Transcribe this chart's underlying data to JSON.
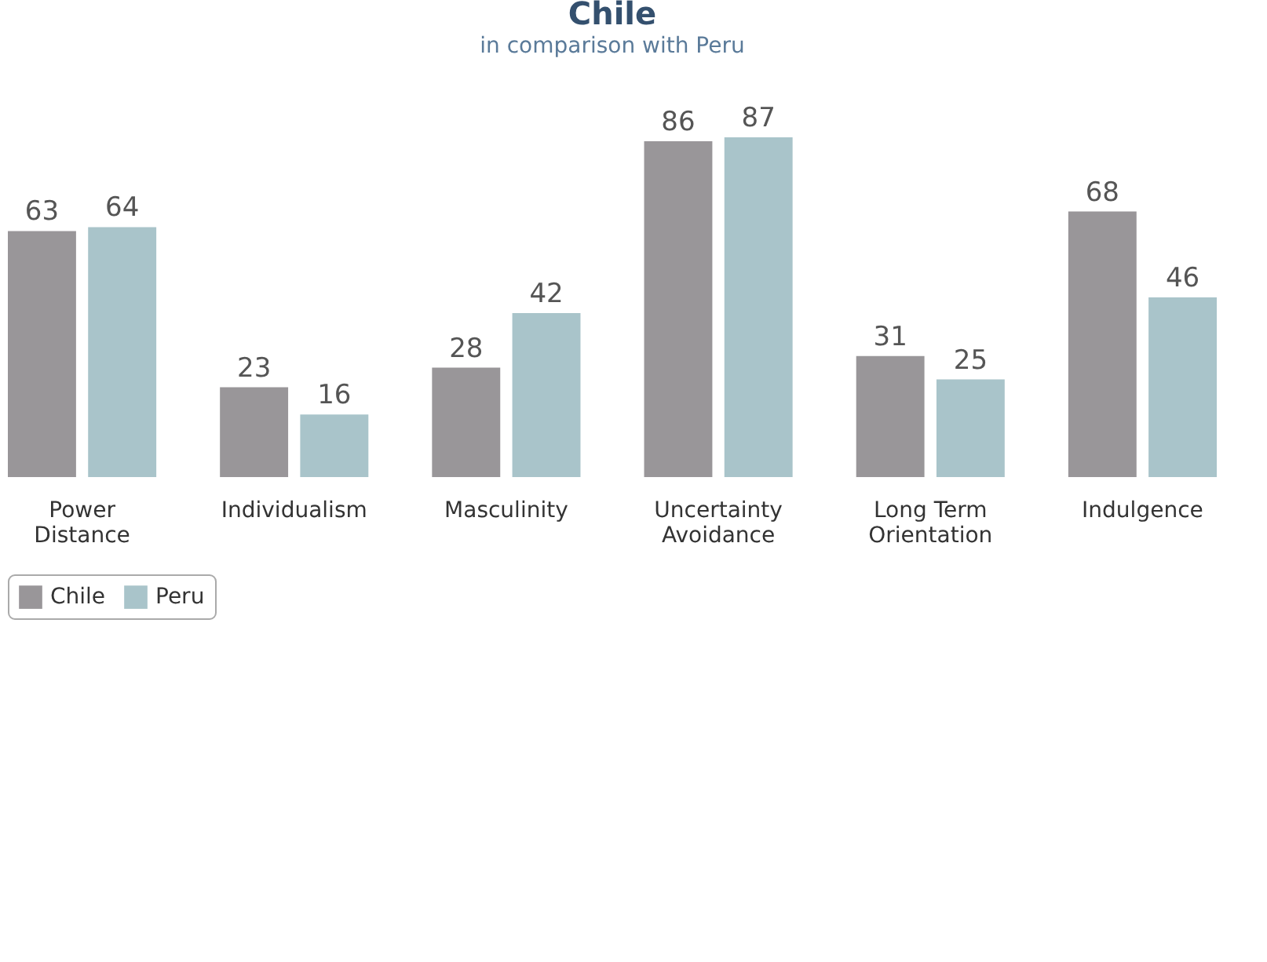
{
  "chart_data": {
    "type": "bar",
    "title": "Chile",
    "subtitle": "in comparison with Peru",
    "categories": [
      "Power Distance",
      "Individualism",
      "Masculinity",
      "Uncertainty Avoidance",
      "Long Term Orientation",
      "Indulgence"
    ],
    "series": [
      {
        "name": "Chile",
        "color": "#999699",
        "values": [
          63,
          23,
          28,
          86,
          31,
          68
        ]
      },
      {
        "name": "Peru",
        "color": "#a9c4ca",
        "values": [
          64,
          16,
          42,
          87,
          25,
          46
        ]
      }
    ],
    "data_labels": true,
    "legend": "bottom",
    "grid": false
  }
}
